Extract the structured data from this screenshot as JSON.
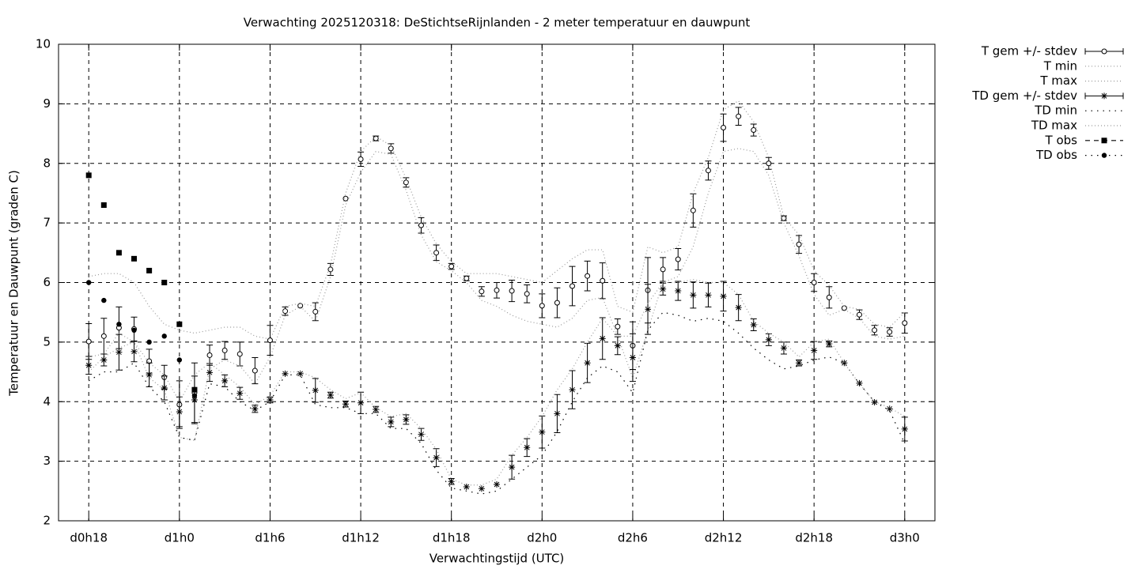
{
  "chart_data": {
    "type": "line",
    "title": "Verwachting 2025120318: DeStichtseRijnlanden - 2 meter temperatuur en dauwpunt",
    "xlabel": "Verwachtingstijd (UTC)",
    "ylabel": "Temperatuur en Dauwpunt (graden C)",
    "xlim": [
      16,
      74
    ],
    "xticks": [
      {
        "value": 18,
        "label": "d0h18"
      },
      {
        "value": 24,
        "label": "d1h0"
      },
      {
        "value": 30,
        "label": "d1h6"
      },
      {
        "value": 36,
        "label": "d1h12"
      },
      {
        "value": 42,
        "label": "d1h18"
      },
      {
        "value": 48,
        "label": "d2h0"
      },
      {
        "value": 54,
        "label": "d2h6"
      },
      {
        "value": 60,
        "label": "d2h12"
      },
      {
        "value": 66,
        "label": "d2h18"
      },
      {
        "value": 72,
        "label": "d3h0"
      }
    ],
    "ylim": [
      2,
      10
    ],
    "yticks": [
      2,
      3,
      4,
      5,
      6,
      7,
      8,
      9,
      10
    ],
    "grid": true,
    "legend": "outside-right",
    "x": [
      18,
      19,
      20,
      21,
      22,
      23,
      24,
      25,
      26,
      27,
      28,
      29,
      30,
      31,
      32,
      33,
      34,
      35,
      36,
      37,
      38,
      39,
      40,
      41,
      42,
      43,
      44,
      45,
      46,
      47,
      48,
      49,
      50,
      51,
      52,
      53,
      54,
      55,
      56,
      57,
      58,
      59,
      60,
      61,
      62,
      63,
      64,
      65,
      66,
      67,
      68,
      69,
      70,
      71,
      72
    ],
    "series": [
      {
        "name": "T gem +/- stdev",
        "color": "#000000",
        "marker": "circle",
        "line": "none",
        "values": [
          5.01,
          5.1,
          5.24,
          5.22,
          4.68,
          4.41,
          3.95,
          4.15,
          4.78,
          4.86,
          4.8,
          4.52,
          5.03,
          5.52,
          5.61,
          5.51,
          6.22,
          7.41,
          8.07,
          8.42,
          8.25,
          7.68,
          6.96,
          6.5,
          6.27,
          6.07,
          5.85,
          5.87,
          5.86,
          5.81,
          5.61,
          5.66,
          5.94,
          6.11,
          6.03,
          5.26,
          4.94,
          5.87,
          6.22,
          6.39,
          7.21,
          7.88,
          8.6,
          8.79,
          8.56,
          8.0,
          7.08,
          6.64,
          6.0,
          5.75,
          5.57,
          5.46,
          5.2,
          5.17,
          5.32
        ],
        "errors": [
          0.3,
          0.3,
          0.35,
          0.2,
          0.2,
          0.2,
          0.4,
          0.5,
          0.17,
          0.15,
          0.2,
          0.22,
          0.25,
          0.07,
          0,
          0.15,
          0.1,
          0,
          0.12,
          0.04,
          0.08,
          0.08,
          0.13,
          0.13,
          0.05,
          0.04,
          0.08,
          0.13,
          0.18,
          0.15,
          0.2,
          0.25,
          0.33,
          0.25,
          0.3,
          0.13,
          0.4,
          0.55,
          0.2,
          0.18,
          0.28,
          0.16,
          0.23,
          0.15,
          0.1,
          0.1,
          0.04,
          0.15,
          0.15,
          0.18,
          0,
          0.08,
          0.08,
          0.07,
          0.17
        ]
      },
      {
        "name": "T min",
        "color": "#999999",
        "marker": "none",
        "line": "dotted",
        "values": [
          4.5,
          4.75,
          4.9,
          5.0,
          4.4,
          4.2,
          3.4,
          3.35,
          4.55,
          4.7,
          4.6,
          4.3,
          4.75,
          5.45,
          5.6,
          5.35,
          6.1,
          7.3,
          7.85,
          8.2,
          8.15,
          7.55,
          6.8,
          6.35,
          6.2,
          6.0,
          5.7,
          5.6,
          5.45,
          5.35,
          5.3,
          5.25,
          5.4,
          5.7,
          5.75,
          5.1,
          4.4,
          5.2,
          6.0,
          6.1,
          6.6,
          7.5,
          8.2,
          8.25,
          8.2,
          7.8,
          7.0,
          6.45,
          5.8,
          5.45,
          5.55,
          5.4,
          5.1,
          5.05,
          5.1
        ]
      },
      {
        "name": "T max",
        "color": "#999999",
        "marker": "none",
        "line": "dotted",
        "values": [
          6.1,
          6.15,
          6.15,
          6.0,
          5.6,
          5.3,
          5.2,
          5.15,
          5.2,
          5.25,
          5.25,
          5.1,
          5.05,
          5.6,
          5.65,
          5.6,
          6.3,
          7.5,
          8.2,
          8.45,
          8.3,
          7.75,
          7.1,
          6.65,
          6.35,
          6.15,
          6.15,
          6.15,
          6.1,
          6.05,
          6.0,
          6.2,
          6.4,
          6.55,
          6.55,
          5.6,
          5.5,
          6.6,
          6.5,
          6.6,
          7.5,
          8.1,
          8.9,
          9.05,
          8.7,
          8.1,
          7.1,
          6.8,
          6.2,
          5.95,
          5.6,
          5.55,
          5.3,
          5.25,
          5.5
        ]
      },
      {
        "name": "TD gem +/- stdev",
        "color": "#000000",
        "marker": "star",
        "line": "none",
        "values": [
          4.61,
          4.7,
          4.83,
          4.84,
          4.45,
          4.23,
          3.83,
          4.03,
          4.49,
          4.35,
          4.14,
          3.88,
          4.03,
          4.47,
          4.47,
          4.19,
          4.11,
          3.96,
          3.98,
          3.87,
          3.66,
          3.7,
          3.45,
          3.06,
          2.66,
          2.57,
          2.54,
          2.61,
          2.9,
          3.23,
          3.49,
          3.8,
          4.2,
          4.65,
          5.06,
          4.94,
          4.74,
          5.55,
          5.89,
          5.86,
          5.79,
          5.79,
          5.77,
          5.58,
          5.29,
          5.04,
          4.9,
          4.65,
          4.86,
          4.97,
          4.65,
          4.31,
          3.99,
          3.88,
          3.54
        ],
        "errors": [
          0.15,
          0.1,
          0.3,
          0.17,
          0.2,
          0.2,
          0.25,
          0.4,
          0.15,
          0.1,
          0.1,
          0.06,
          0.05,
          0,
          0,
          0.2,
          0.05,
          0.05,
          0.18,
          0.05,
          0.08,
          0.08,
          0.1,
          0.15,
          0.05,
          0,
          0,
          0,
          0.2,
          0.15,
          0.27,
          0.32,
          0.32,
          0.33,
          0.35,
          0.15,
          0.4,
          0.42,
          0.1,
          0.16,
          0.22,
          0.2,
          0.25,
          0.22,
          0.1,
          0.1,
          0.1,
          0.05,
          0.15,
          0.05,
          0,
          0,
          0,
          0,
          0.2
        ]
      },
      {
        "name": "TD min",
        "color": "#000000",
        "marker": "none",
        "line": "sparse-dotted",
        "values": [
          4.35,
          4.5,
          4.5,
          4.65,
          4.25,
          4.0,
          3.4,
          3.35,
          4.3,
          4.25,
          4.0,
          3.85,
          4.0,
          4.45,
          4.45,
          3.95,
          3.9,
          3.9,
          3.8,
          3.8,
          3.55,
          3.55,
          3.3,
          2.85,
          2.55,
          2.5,
          2.45,
          2.5,
          2.7,
          2.9,
          3.1,
          3.5,
          4.0,
          4.4,
          4.6,
          4.5,
          4.15,
          5.2,
          5.5,
          5.45,
          5.35,
          5.4,
          5.35,
          5.15,
          4.9,
          4.7,
          4.55,
          4.6,
          4.7,
          4.75,
          4.65,
          4.3,
          4.0,
          3.85,
          3.3
        ]
      },
      {
        "name": "TD max",
        "color": "#999999",
        "marker": "none",
        "line": "dotted",
        "values": [
          4.75,
          4.8,
          5.15,
          5.0,
          4.65,
          4.45,
          4.0,
          4.45,
          4.65,
          4.45,
          4.25,
          3.95,
          4.1,
          4.5,
          4.5,
          4.4,
          4.2,
          4.05,
          4.15,
          3.9,
          3.75,
          3.8,
          3.55,
          3.2,
          2.7,
          2.6,
          2.6,
          2.7,
          3.1,
          3.4,
          3.75,
          4.2,
          4.55,
          5.0,
          5.4,
          5.1,
          5.1,
          5.65,
          6.0,
          6.0,
          6.05,
          6.0,
          6.0,
          5.8,
          5.35,
          5.15,
          5.0,
          4.75,
          5.0,
          5.05,
          4.65,
          4.3,
          4.0,
          3.9,
          3.75
        ]
      },
      {
        "name": "T obs",
        "color": "#000000",
        "marker": "square",
        "line": "none",
        "legend_line": "dashed",
        "x": [
          18,
          19,
          20,
          21,
          22,
          23,
          24,
          25
        ],
        "values": [
          7.8,
          7.3,
          6.5,
          6.4,
          6.2,
          6.0,
          5.3,
          4.2
        ]
      },
      {
        "name": "TD obs",
        "color": "#000000",
        "marker": "dot",
        "line": "none",
        "legend_line": "sparse-dotted",
        "x": [
          18,
          19,
          20,
          21,
          22,
          23,
          24,
          25
        ],
        "values": [
          6.0,
          5.7,
          5.3,
          5.2,
          5.0,
          5.1,
          4.7,
          4.1
        ]
      }
    ]
  }
}
